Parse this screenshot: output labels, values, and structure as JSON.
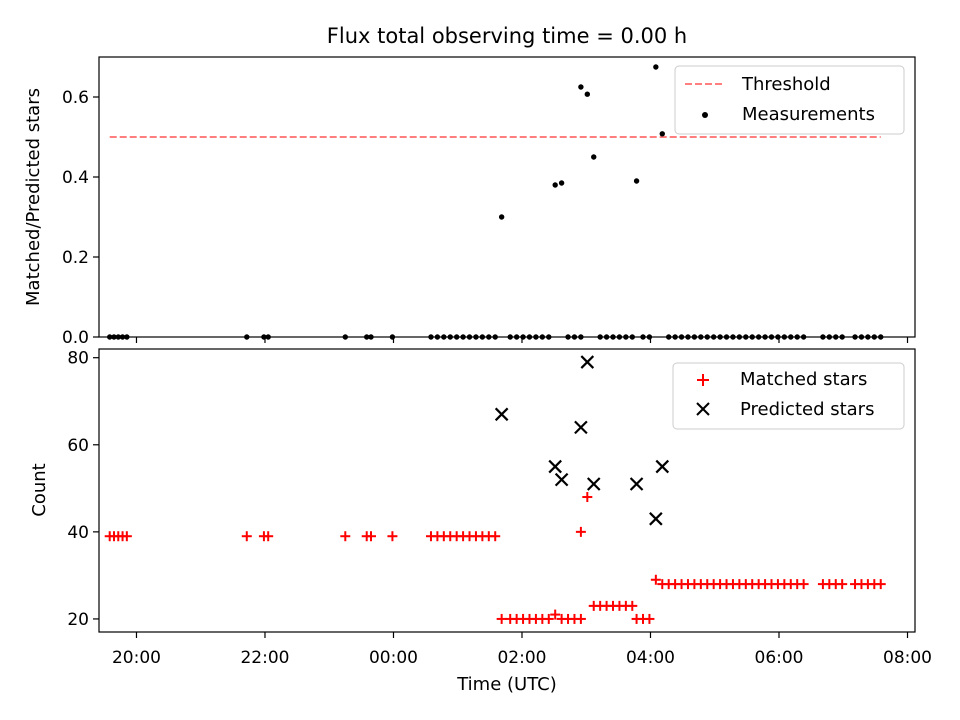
{
  "chart_data": [
    {
      "type": "scatter",
      "title": "Flux total observing time = 0.00 h",
      "ylabel": "Matched/Predicted stars",
      "xlabel": "",
      "xlim": [
        "19:25",
        "08:07"
      ],
      "ylim": [
        0,
        0.7
      ],
      "xticks": [
        "20:00",
        "22:00",
        "00:00",
        "02:00",
        "04:00",
        "06:00",
        "08:00"
      ],
      "yticks": [
        "0.0",
        "0.2",
        "0.4",
        "0.6"
      ],
      "legend": "top-right",
      "threshold": {
        "name": "Threshold",
        "value": 0.5,
        "x_from": "19:35",
        "x_to": "07:35",
        "color": "#ff7f7f",
        "style": "dashed"
      },
      "series": [
        {
          "name": "Measurements",
          "color": "#000000",
          "marker": "dot",
          "points": [
            [
              "19:35",
              0
            ],
            [
              "19:39",
              0
            ],
            [
              "19:43",
              0
            ],
            [
              "19:47",
              0
            ],
            [
              "19:51",
              0
            ],
            [
              "21:43",
              0
            ],
            [
              "21:59",
              0
            ],
            [
              "22:03",
              0
            ],
            [
              "23:15",
              0
            ],
            [
              "23:35",
              0
            ],
            [
              "23:39",
              0
            ],
            [
              "23:59",
              0
            ],
            [
              "00:35",
              0
            ],
            [
              "00:41",
              0
            ],
            [
              "00:47",
              0
            ],
            [
              "00:53",
              0
            ],
            [
              "00:59",
              0
            ],
            [
              "01:05",
              0
            ],
            [
              "01:11",
              0
            ],
            [
              "01:17",
              0
            ],
            [
              "01:23",
              0
            ],
            [
              "01:29",
              0
            ],
            [
              "01:35",
              0
            ],
            [
              "01:41",
              0.3
            ],
            [
              "01:49",
              0
            ],
            [
              "01:55",
              0
            ],
            [
              "02:01",
              0
            ],
            [
              "02:07",
              0
            ],
            [
              "02:13",
              0
            ],
            [
              "02:19",
              0
            ],
            [
              "02:25",
              0
            ],
            [
              "02:31",
              0.38
            ],
            [
              "02:37",
              0.385
            ],
            [
              "02:43",
              0
            ],
            [
              "02:49",
              0
            ],
            [
              "02:55",
              0
            ],
            [
              "02:55",
              0.625
            ],
            [
              "03:01",
              0.607
            ],
            [
              "03:07",
              0.45
            ],
            [
              "03:13",
              0
            ],
            [
              "03:19",
              0
            ],
            [
              "03:25",
              0
            ],
            [
              "03:31",
              0
            ],
            [
              "03:37",
              0
            ],
            [
              "03:43",
              0
            ],
            [
              "03:47",
              0.39
            ],
            [
              "03:53",
              0
            ],
            [
              "03:59",
              0
            ],
            [
              "04:05",
              0.675
            ],
            [
              "04:11",
              0.508
            ],
            [
              "04:17",
              0
            ],
            [
              "04:23",
              0
            ],
            [
              "04:29",
              0
            ],
            [
              "04:35",
              0
            ],
            [
              "04:41",
              0
            ],
            [
              "04:47",
              0
            ],
            [
              "04:53",
              0
            ],
            [
              "04:59",
              0
            ],
            [
              "05:05",
              0
            ],
            [
              "05:11",
              0
            ],
            [
              "05:17",
              0
            ],
            [
              "05:23",
              0
            ],
            [
              "05:29",
              0
            ],
            [
              "05:35",
              0
            ],
            [
              "05:41",
              0
            ],
            [
              "05:47",
              0
            ],
            [
              "05:53",
              0
            ],
            [
              "05:59",
              0
            ],
            [
              "06:05",
              0
            ],
            [
              "06:11",
              0
            ],
            [
              "06:17",
              0
            ],
            [
              "06:23",
              0
            ],
            [
              "06:41",
              0
            ],
            [
              "06:47",
              0
            ],
            [
              "06:53",
              0
            ],
            [
              "06:59",
              0
            ],
            [
              "07:11",
              0
            ],
            [
              "07:17",
              0
            ],
            [
              "07:23",
              0
            ],
            [
              "07:29",
              0
            ],
            [
              "07:35",
              0
            ]
          ]
        }
      ]
    },
    {
      "type": "scatter",
      "title": "",
      "ylabel": "Count",
      "xlabel": "Time (UTC)",
      "xlim": [
        "19:25",
        "08:07"
      ],
      "ylim": [
        17,
        82
      ],
      "xticks": [
        "20:00",
        "22:00",
        "00:00",
        "02:00",
        "04:00",
        "06:00",
        "08:00"
      ],
      "yticks": [
        "20",
        "40",
        "60",
        "80"
      ],
      "legend": "top-right",
      "series": [
        {
          "name": "Matched stars",
          "color": "#ff0000",
          "marker": "plus",
          "points": [
            [
              "19:35",
              39
            ],
            [
              "19:39",
              39
            ],
            [
              "19:43",
              39
            ],
            [
              "19:47",
              39
            ],
            [
              "19:51",
              39
            ],
            [
              "21:43",
              39
            ],
            [
              "21:59",
              39
            ],
            [
              "22:03",
              39
            ],
            [
              "23:15",
              39
            ],
            [
              "23:35",
              39
            ],
            [
              "23:39",
              39
            ],
            [
              "23:59",
              39
            ],
            [
              "00:35",
              39
            ],
            [
              "00:41",
              39
            ],
            [
              "00:47",
              39
            ],
            [
              "00:53",
              39
            ],
            [
              "00:59",
              39
            ],
            [
              "01:05",
              39
            ],
            [
              "01:11",
              39
            ],
            [
              "01:17",
              39
            ],
            [
              "01:23",
              39
            ],
            [
              "01:29",
              39
            ],
            [
              "01:35",
              39
            ],
            [
              "01:41",
              20
            ],
            [
              "01:49",
              20
            ],
            [
              "01:55",
              20
            ],
            [
              "02:01",
              20
            ],
            [
              "02:07",
              20
            ],
            [
              "02:13",
              20
            ],
            [
              "02:19",
              20
            ],
            [
              "02:25",
              20
            ],
            [
              "02:31",
              21
            ],
            [
              "02:37",
              20
            ],
            [
              "02:43",
              20
            ],
            [
              "02:49",
              20
            ],
            [
              "02:55",
              20
            ],
            [
              "02:55",
              40
            ],
            [
              "03:01",
              48
            ],
            [
              "03:07",
              23
            ],
            [
              "03:13",
              23
            ],
            [
              "03:19",
              23
            ],
            [
              "03:25",
              23
            ],
            [
              "03:31",
              23
            ],
            [
              "03:37",
              23
            ],
            [
              "03:43",
              23
            ],
            [
              "03:47",
              20
            ],
            [
              "03:53",
              20
            ],
            [
              "03:59",
              20
            ],
            [
              "04:05",
              29
            ],
            [
              "04:11",
              28
            ],
            [
              "04:17",
              28
            ],
            [
              "04:23",
              28
            ],
            [
              "04:29",
              28
            ],
            [
              "04:35",
              28
            ],
            [
              "04:41",
              28
            ],
            [
              "04:47",
              28
            ],
            [
              "04:53",
              28
            ],
            [
              "04:59",
              28
            ],
            [
              "05:05",
              28
            ],
            [
              "05:11",
              28
            ],
            [
              "05:17",
              28
            ],
            [
              "05:23",
              28
            ],
            [
              "05:29",
              28
            ],
            [
              "05:35",
              28
            ],
            [
              "05:41",
              28
            ],
            [
              "05:47",
              28
            ],
            [
              "05:53",
              28
            ],
            [
              "05:59",
              28
            ],
            [
              "06:05",
              28
            ],
            [
              "06:11",
              28
            ],
            [
              "06:17",
              28
            ],
            [
              "06:23",
              28
            ],
            [
              "06:41",
              28
            ],
            [
              "06:47",
              28
            ],
            [
              "06:53",
              28
            ],
            [
              "06:59",
              28
            ],
            [
              "07:11",
              28
            ],
            [
              "07:17",
              28
            ],
            [
              "07:23",
              28
            ],
            [
              "07:29",
              28
            ],
            [
              "07:35",
              28
            ]
          ]
        },
        {
          "name": "Predicted stars",
          "color": "#000000",
          "marker": "x",
          "points": [
            [
              "01:41",
              67
            ],
            [
              "02:31",
              55
            ],
            [
              "02:37",
              52
            ],
            [
              "02:55",
              64
            ],
            [
              "03:01",
              79
            ],
            [
              "03:07",
              51
            ],
            [
              "03:47",
              51
            ],
            [
              "04:05",
              43
            ],
            [
              "04:11",
              55
            ]
          ]
        }
      ]
    }
  ]
}
